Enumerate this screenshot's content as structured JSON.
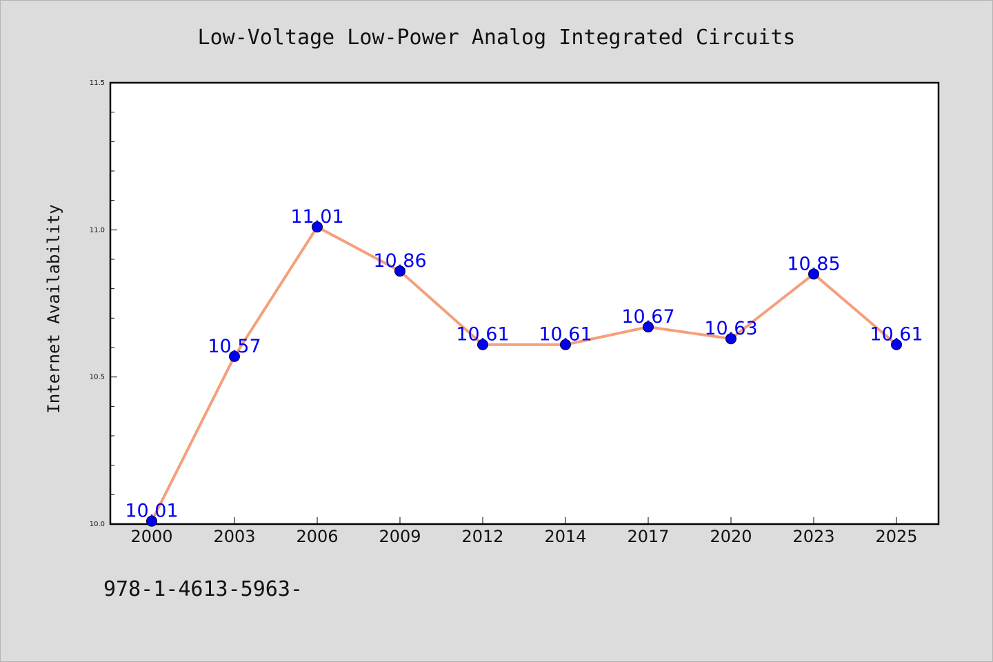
{
  "chart_data": {
    "type": "line",
    "title": "Low-Voltage Low-Power Analog Integrated Circuits",
    "xlabel": "",
    "ylabel": "Internet Availability",
    "categories": [
      "2000",
      "2003",
      "2006",
      "2009",
      "2012",
      "2014",
      "2017",
      "2020",
      "2023",
      "2025"
    ],
    "series": [
      {
        "values": [
          10.01,
          10.57,
          11.01,
          10.86,
          10.61,
          10.61,
          10.67,
          10.63,
          10.85,
          10.61
        ],
        "line_color": "#f4a07c",
        "marker_color": "#0000ee"
      }
    ],
    "data_labels": [
      "10.01",
      "10.57",
      "11.01",
      "10.86",
      "10.61",
      "10.61",
      "10.67",
      "10.63",
      "10.85",
      "10.61"
    ],
    "ylim": [
      10.0,
      11.5
    ],
    "yticks": [
      "10.0",
      "10.5",
      "11.0",
      "11.5"
    ],
    "grid": false,
    "legend": "none"
  },
  "footer": {
    "isbn": "978-1-4613-5963-"
  }
}
